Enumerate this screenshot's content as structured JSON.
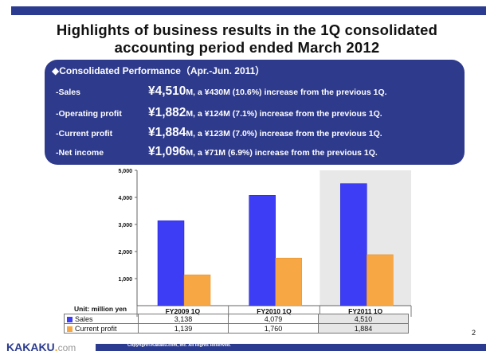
{
  "title_line1": "Highlights of business results in the 1Q consolidated",
  "title_line2": "accounting period ended March 2012",
  "performance": {
    "heading": "◆Consolidated Performance（Apr.-Jun. 2011）",
    "rows": [
      {
        "label": "-Sales",
        "amount": "¥4,510",
        "unit": "M",
        "detail": ", a ¥430M (10.6%) increase from the previous 1Q."
      },
      {
        "label": "-Operating profit",
        "amount": "¥1,882",
        "unit": "M",
        "detail": ", a ¥124M (7.1%) increase from the previous 1Q."
      },
      {
        "label": "-Current profit",
        "amount": "¥1,884",
        "unit": "M",
        "detail": ", a ¥123M (7.0%) increase from the previous 1Q."
      },
      {
        "label": "-Net income",
        "amount": "¥1,096",
        "unit": "M",
        "detail": ", a ¥71M (6.9%) increase from the previous 1Q."
      }
    ]
  },
  "unit_label": "Unit: million yen",
  "colors": {
    "sales": "#3d3df5",
    "current_profit": "#f7a845",
    "brand": "#2b3b8f"
  },
  "chart_data": {
    "type": "bar",
    "categories": [
      "FY2009 1Q",
      "FY2010 1Q",
      "FY2011 1Q"
    ],
    "series": [
      {
        "name": "Sales",
        "values": [
          3138,
          4079,
          4510
        ],
        "labels": [
          "3,138",
          "4,079",
          "4,510"
        ]
      },
      {
        "name": "Current profit",
        "values": [
          1139,
          1760,
          1884
        ],
        "labels": [
          "1,139",
          "1,760",
          "1,884"
        ]
      }
    ],
    "yticks": [
      "5,000",
      "4,000",
      "3,000",
      "2,000",
      "1,000"
    ],
    "ylim": [
      0,
      5000
    ],
    "highlight_category": "FY2011 1Q"
  },
  "footer": {
    "logo_main": "KAKAKU",
    "logo_dot": ".",
    "logo_com": "com",
    "copyright": "Copyright©Kakaku.com, Inc. All Rights Reserved.",
    "page": "2"
  }
}
